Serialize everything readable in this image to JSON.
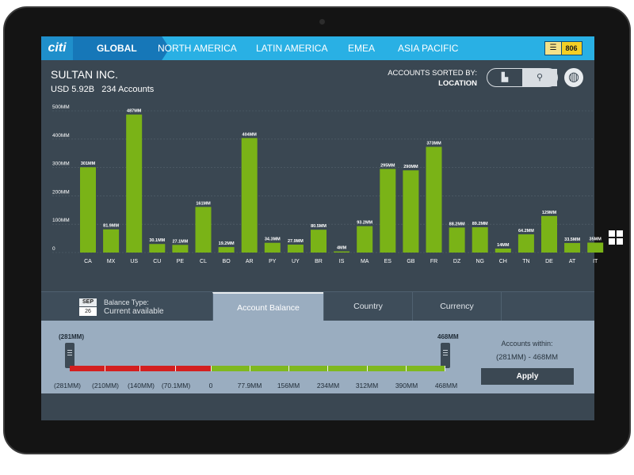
{
  "nav": {
    "logo": "citi",
    "global": "GLOBAL",
    "regions": [
      "NORTH AMERICA",
      "LATIN AMERICA",
      "EMEA",
      "ASIA PACIFIC"
    ],
    "notification_count": "806"
  },
  "header": {
    "company": "SULTAN INC.",
    "total": "USD 5.92B",
    "accounts": "234 Accounts",
    "sorted_by_label": "ACCOUNTS SORTED BY:",
    "sorted_by_value": "LOCATION"
  },
  "chart_data": {
    "type": "bar",
    "categories": [
      "CA",
      "MX",
      "US",
      "CU",
      "PE",
      "CL",
      "BO",
      "AR",
      "PY",
      "UY",
      "BR",
      "IS",
      "MA",
      "ES",
      "GB",
      "FR",
      "DZ",
      "NG",
      "CH",
      "TN",
      "DE",
      "AT",
      "IT"
    ],
    "values": [
      301,
      81.9,
      487,
      30.1,
      27.1,
      161,
      19.2,
      404,
      34.3,
      27.9,
      80.5,
      4,
      93.2,
      295,
      290,
      373,
      88.2,
      89.2,
      14,
      64.2,
      129,
      33.5,
      35
    ],
    "data_labels": [
      "301MM",
      "81.9MM",
      "487MM",
      "30.1MM",
      "27.1MM",
      "161MM",
      "19.2MM",
      "404MM",
      "34.3MM",
      "27.9MM",
      "80.5MM",
      "4MM",
      "93.2MM",
      "295MM",
      "290MM",
      "373MM",
      "88.2MM",
      "89.2MM",
      "14MM",
      "64.2MM",
      "129MM",
      "33.5MM",
      "35MM"
    ],
    "y_ticks": [
      "0",
      "100MM",
      "200MM",
      "300MM",
      "400MM",
      "500MM"
    ],
    "ylim": [
      0,
      500
    ],
    "grid": true,
    "bar_color": "#7ab317"
  },
  "filters": {
    "cal_month": "SEP",
    "cal_day": "26",
    "balance_type_label": "Balance Type:",
    "balance_type_value": "Current available",
    "tabs": [
      "Account Balance",
      "Country",
      "Currency"
    ]
  },
  "range": {
    "min_label": "(281MM)",
    "max_label": "468MM",
    "ticks": [
      "(281MM)",
      "(210MM)",
      "(140MM)",
      "(70.1MM)",
      "0",
      "77.9MM",
      "156MM",
      "234MM",
      "312MM",
      "390MM",
      "468MM"
    ],
    "within_label": "Accounts within:",
    "within_range": "(281MM) - 468MM",
    "apply": "Apply"
  },
  "colors": {
    "nav_bg": "#29b0e4",
    "nav_active": "#1677b8",
    "screen_bg": "#3a4752",
    "bar": "#7ab317",
    "negative": "#d41f1f",
    "positive": "#7fb81f",
    "notification": "#f4cf25"
  }
}
